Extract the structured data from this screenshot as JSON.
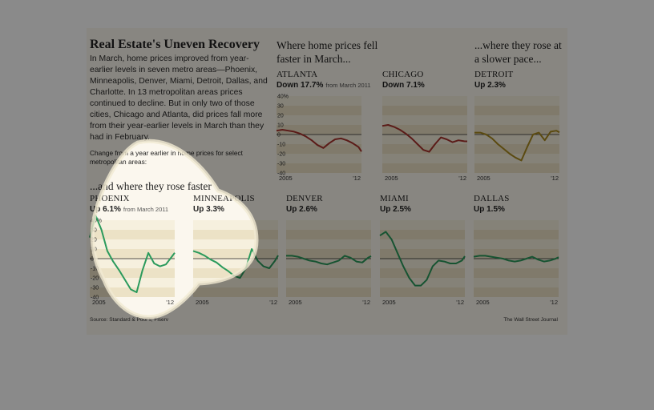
{
  "title": "Real Estate's Uneven Recovery",
  "intro": "In March, home prices improved from year-earlier levels in seven metro areas—Phoenix, Minneapolis, Denver, Miami, Detroit, Dallas, and Charlotte. In 13 metropolitan areas prices continued to decline. But in only two of those cities, Chicago and Atlanta, did prices fall more from their year-earlier levels in March than they had in February.",
  "intro_note": "Change from a year earlier in home prices for select metropolitan areas:",
  "groups": {
    "fell_faster": "Where home prices fell faster in March...",
    "rose_slower": "...where they rose at a slower pace...",
    "rose_faster": "...and where they rose faster"
  },
  "footer": {
    "source": "Source: Standard & Poor's; Fiserv",
    "credit": "The Wall Street Journal"
  },
  "colors": {
    "falling": "#a8322d",
    "slower": "#a8891f",
    "faster": "#2a9a5c",
    "band": "#ece2c6"
  },
  "chart_data": [
    {
      "type": "line",
      "city": "ATLANTA",
      "change_label": "Down 17.7%",
      "note": "from March 2011",
      "x_ticks": [
        "2005",
        "'12"
      ],
      "y_ticks": [
        "40%",
        "30",
        "20",
        "10",
        "0",
        "-10",
        "-20",
        "-30",
        "-40"
      ],
      "ylim": [
        -40,
        40
      ],
      "color": "falling",
      "x": [
        2005,
        2005.5,
        2006,
        2006.5,
        2007,
        2007.5,
        2008,
        2008.5,
        2009,
        2009.5,
        2010,
        2010.5,
        2011,
        2011.5,
        2012,
        2012.25
      ],
      "values": [
        4,
        5,
        4,
        3,
        1,
        -2,
        -6,
        -11,
        -14,
        -9,
        -5,
        -4,
        -6,
        -9,
        -13,
        -17.7
      ]
    },
    {
      "type": "line",
      "city": "CHICAGO",
      "change_label": "Down 7.1%",
      "note": "",
      "x_ticks": [
        "2005",
        "'12"
      ],
      "ylim": [
        -40,
        40
      ],
      "color": "falling",
      "x": [
        2005,
        2005.5,
        2006,
        2006.5,
        2007,
        2007.5,
        2008,
        2008.5,
        2009,
        2009.5,
        2010,
        2010.5,
        2011,
        2011.5,
        2012,
        2012.25
      ],
      "values": [
        9,
        10,
        8,
        5,
        1,
        -4,
        -10,
        -16,
        -18,
        -10,
        -3,
        -5,
        -8,
        -6,
        -7,
        -7.1
      ]
    },
    {
      "type": "line",
      "city": "DETROIT",
      "change_label": "Up 2.3%",
      "note": "",
      "x_ticks": [
        "2005",
        "'12"
      ],
      "ylim": [
        -40,
        40
      ],
      "color": "slower",
      "x": [
        2005,
        2005.5,
        2006,
        2006.5,
        2007,
        2007.5,
        2008,
        2008.5,
        2009,
        2009.5,
        2010,
        2010.5,
        2011,
        2011.5,
        2012,
        2012.25
      ],
      "values": [
        2,
        2,
        0,
        -4,
        -10,
        -15,
        -20,
        -24,
        -27,
        -13,
        0,
        2,
        -6,
        3,
        4,
        2.3
      ]
    },
    {
      "type": "line",
      "city": "PHOENIX",
      "change_label": "Up 6.1%",
      "note": "from March 2011",
      "x_ticks": [
        "2005",
        "'12"
      ],
      "y_ticks": [
        "40%",
        "30",
        "20",
        "10",
        "0",
        "-10",
        "-20",
        "-30",
        "-40"
      ],
      "ylim": [
        -40,
        40
      ],
      "color": "faster",
      "x": [
        2005,
        2005.5,
        2006,
        2006.5,
        2007,
        2007.5,
        2008,
        2008.5,
        2009,
        2009.5,
        2010,
        2010.5,
        2011,
        2011.5,
        2012,
        2012.25
      ],
      "values": [
        22,
        45,
        30,
        8,
        -3,
        -12,
        -22,
        -32,
        -35,
        -12,
        6,
        -5,
        -8,
        -6,
        2,
        6.1
      ]
    },
    {
      "type": "line",
      "city": "MINNEAPOLIS",
      "change_label": "Up 3.3%",
      "note": "",
      "x_ticks": [
        "2005",
        "'12"
      ],
      "ylim": [
        -40,
        40
      ],
      "color": "faster",
      "x": [
        2005,
        2005.5,
        2006,
        2006.5,
        2007,
        2007.5,
        2008,
        2008.5,
        2009,
        2009.5,
        2010,
        2010.5,
        2011,
        2011.5,
        2012,
        2012.25
      ],
      "values": [
        8,
        6,
        3,
        -1,
        -4,
        -9,
        -13,
        -18,
        -20,
        -10,
        10,
        -2,
        -8,
        -10,
        -2,
        3.3
      ]
    },
    {
      "type": "line",
      "city": "DENVER",
      "change_label": "Up 2.6%",
      "note": "",
      "x_ticks": [
        "2005",
        "'12"
      ],
      "ylim": [
        -40,
        40
      ],
      "color": "faster",
      "x": [
        2005,
        2005.5,
        2006,
        2006.5,
        2007,
        2007.5,
        2008,
        2008.5,
        2009,
        2009.5,
        2010,
        2010.5,
        2011,
        2011.5,
        2012,
        2012.25
      ],
      "values": [
        3,
        3,
        2,
        0,
        -2,
        -3,
        -5,
        -6,
        -4,
        -2,
        3,
        1,
        -3,
        -4,
        1,
        2.6
      ]
    },
    {
      "type": "line",
      "city": "MIAMI",
      "change_label": "Up 2.5%",
      "note": "",
      "x_ticks": [
        "2005",
        "'12"
      ],
      "ylim": [
        -40,
        40
      ],
      "color": "faster",
      "x": [
        2005,
        2005.5,
        2006,
        2006.5,
        2007,
        2007.5,
        2008,
        2008.5,
        2009,
        2009.5,
        2010,
        2010.5,
        2011,
        2011.5,
        2012,
        2012.25
      ],
      "values": [
        24,
        28,
        20,
        6,
        -8,
        -20,
        -28,
        -28,
        -22,
        -8,
        -2,
        -3,
        -5,
        -5,
        -2,
        2.5
      ]
    },
    {
      "type": "line",
      "city": "DALLAS",
      "change_label": "Up 1.5%",
      "note": "",
      "x_ticks": [
        "2005",
        "'12"
      ],
      "ylim": [
        -40,
        40
      ],
      "color": "faster",
      "x": [
        2005,
        2005.5,
        2006,
        2006.5,
        2007,
        2007.5,
        2008,
        2008.5,
        2009,
        2009.5,
        2010,
        2010.5,
        2011,
        2011.5,
        2012,
        2012.25
      ],
      "values": [
        2,
        3,
        3,
        2,
        1,
        0,
        -2,
        -3,
        -2,
        0,
        2,
        -1,
        -3,
        -2,
        0,
        1.5
      ]
    }
  ]
}
